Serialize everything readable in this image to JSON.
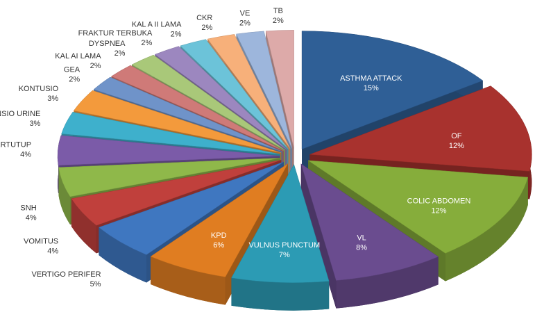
{
  "chart_data": {
    "type": "pie3d",
    "categories": [
      "ASTHMA ATTACK",
      "OF",
      "COLIC ABDOMEN",
      "VL",
      "VULNUS PUNCTUM",
      "KPD",
      "VERTIGO PERIFER",
      "VOMITUS",
      "SNH",
      "FRAKTUR TERTUTUP",
      "RETENSIO URINE",
      "KONTUSIO",
      "GEA",
      "KAL AI LAMA",
      "DYSPNEA",
      "FRAKTUR TERBUKA",
      "KAL A II LAMA",
      "CKR",
      "VE",
      "TB"
    ],
    "values": [
      15,
      12,
      12,
      8,
      7,
      6,
      5,
      4,
      4,
      4,
      3,
      3,
      2,
      2,
      2,
      2,
      2,
      2,
      2,
      2
    ],
    "value_labels": [
      "15%",
      "12%",
      "12%",
      "8%",
      "7%",
      "6%",
      "5%",
      "4%",
      "4%",
      "4%",
      "3%",
      "3%",
      "2%",
      "2%",
      "2%",
      "2%",
      "2%",
      "2%",
      "2%",
      "2%"
    ],
    "colors": [
      "#2f5f96",
      "#a8322e",
      "#86ad3b",
      "#6a4c8f",
      "#2c9bb4",
      "#e07d21",
      "#3f77c0",
      "#c0403c",
      "#8fb84a",
      "#7b5ba8",
      "#3eb0cc",
      "#f39a3c",
      "#6f93c9",
      "#cf7a78",
      "#a9c879",
      "#9c87bf",
      "#6cc3d9",
      "#f7b07a",
      "#9db6dc",
      "#ddaaa9"
    ]
  }
}
